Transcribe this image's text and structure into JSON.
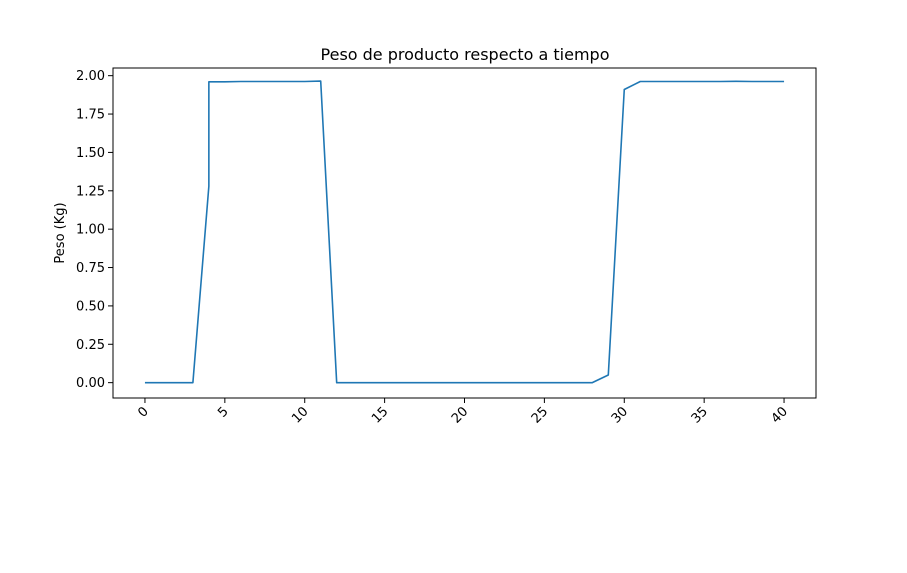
{
  "colors": {
    "series": "#1f77b4",
    "axes": "#000000",
    "background": "#ffffff"
  },
  "chart_data": {
    "type": "line",
    "title": "Peso de producto respecto a tiempo",
    "xlabel": "",
    "ylabel": "Peso (Kg)",
    "xlim": [
      -2,
      42
    ],
    "ylim": [
      -0.1,
      2.05
    ],
    "x_ticks": [
      0,
      5,
      10,
      15,
      20,
      25,
      30,
      35,
      40
    ],
    "x_tick_labels": [
      "0",
      "5",
      "10",
      "15",
      "20",
      "25",
      "30",
      "35",
      "40"
    ],
    "y_ticks": [
      0,
      0.25,
      0.5,
      0.75,
      1.0,
      1.25,
      1.5,
      1.75,
      2.0
    ],
    "y_tick_labels": [
      "0.00",
      "0.25",
      "0.50",
      "0.75",
      "1.00",
      "1.25",
      "1.50",
      "1.75",
      "2.00"
    ],
    "grid": false,
    "legend": "none",
    "series": [
      {
        "x": [
          0,
          1,
          2,
          3,
          4,
          4,
          5,
          6,
          7,
          8,
          9,
          10,
          11,
          12,
          13,
          14,
          15,
          16,
          17,
          18,
          19,
          20,
          21,
          22,
          23,
          24,
          25,
          26,
          27,
          28,
          29,
          30,
          31,
          32,
          33,
          34,
          35,
          36,
          37,
          38,
          39,
          40
        ],
        "y": [
          0,
          0,
          0,
          0,
          1.28,
          1.96,
          1.96,
          1.962,
          1.962,
          1.962,
          1.962,
          1.962,
          1.965,
          0,
          0,
          0,
          0,
          0,
          0,
          0,
          0,
          0,
          0,
          0,
          0,
          0,
          0,
          0,
          0,
          0,
          0.05,
          1.91,
          1.962,
          1.962,
          1.962,
          1.962,
          1.962,
          1.962,
          1.963,
          1.962,
          1.962,
          1.962
        ]
      }
    ]
  }
}
